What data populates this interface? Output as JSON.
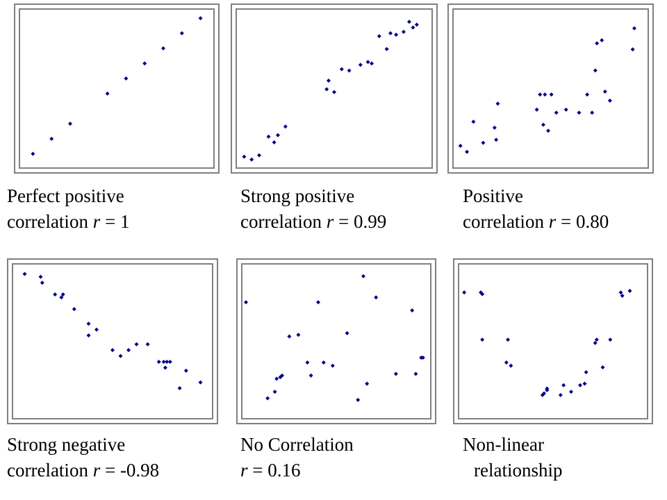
{
  "colors": {
    "point": "#00008b",
    "frame": "#808080",
    "background": "#ffffff",
    "text": "#000000"
  },
  "chart_data": [
    {
      "type": "scatter",
      "caption": {
        "line1": "Perfect positive",
        "line2_prefix": "correlation ",
        "r_symbol": "r",
        "line2_suffix": " = 1"
      },
      "points": [
        [
          0.5,
          3.0
        ],
        [
          1.5,
          4.5
        ],
        [
          2.5,
          6.0
        ],
        [
          4.5,
          9.0
        ],
        [
          5.5,
          10.5
        ],
        [
          6.5,
          12.0
        ],
        [
          7.5,
          13.5
        ],
        [
          8.5,
          15.0
        ],
        [
          9.5,
          16.5
        ]
      ]
    },
    {
      "type": "scatter",
      "caption": {
        "line1": "Strong positive",
        "line2_prefix": "correlation ",
        "r_symbol": "r",
        "line2_suffix": " = 0.99"
      },
      "points": [
        [
          0.2,
          2.5
        ],
        [
          0.6,
          2.3
        ],
        [
          1.0,
          2.6
        ],
        [
          1.5,
          3.9
        ],
        [
          1.8,
          3.5
        ],
        [
          2.0,
          4.0
        ],
        [
          2.4,
          4.6
        ],
        [
          4.6,
          7.2
        ],
        [
          4.7,
          7.8
        ],
        [
          5.0,
          7.0
        ],
        [
          5.4,
          8.6
        ],
        [
          5.8,
          8.5
        ],
        [
          6.4,
          8.9
        ],
        [
          6.8,
          9.1
        ],
        [
          7.0,
          9.0
        ],
        [
          7.4,
          10.9
        ],
        [
          7.8,
          10.0
        ],
        [
          8.0,
          11.1
        ],
        [
          8.3,
          11.0
        ],
        [
          8.7,
          11.2
        ],
        [
          9.0,
          11.9
        ],
        [
          9.2,
          11.5
        ],
        [
          9.4,
          11.7
        ]
      ]
    },
    {
      "type": "scatter",
      "caption": {
        "line1": "Positive",
        "line2_prefix": "correlation ",
        "r_symbol": "r",
        "line2_suffix": " = 0.80"
      },
      "points": [
        [
          0.2,
          3.6
        ],
        [
          0.6,
          3.4
        ],
        [
          1.0,
          4.4
        ],
        [
          1.6,
          3.7
        ],
        [
          2.3,
          4.2
        ],
        [
          2.4,
          3.8
        ],
        [
          2.5,
          5.0
        ],
        [
          4.9,
          4.8
        ],
        [
          5.1,
          5.3
        ],
        [
          5.3,
          4.3
        ],
        [
          5.4,
          5.3
        ],
        [
          5.6,
          4.1
        ],
        [
          5.8,
          5.3
        ],
        [
          6.1,
          4.7
        ],
        [
          6.7,
          4.8
        ],
        [
          7.5,
          4.7
        ],
        [
          8.0,
          5.3
        ],
        [
          8.3,
          4.7
        ],
        [
          8.5,
          6.1
        ],
        [
          8.6,
          7.0
        ],
        [
          8.9,
          7.1
        ],
        [
          9.1,
          5.4
        ],
        [
          9.4,
          5.1
        ],
        [
          10.8,
          6.8
        ],
        [
          10.9,
          7.5
        ]
      ]
    },
    {
      "type": "scatter",
      "caption": {
        "line1": "Strong negative",
        "line2_prefix": "correlation ",
        "r_symbol": "r",
        "line2_suffix": " = -0.98"
      },
      "points": [
        [
          0.5,
          9.8
        ],
        [
          1.5,
          9.7
        ],
        [
          1.6,
          9.5
        ],
        [
          2.4,
          9.1
        ],
        [
          2.8,
          9.0
        ],
        [
          2.9,
          9.1
        ],
        [
          3.6,
          8.6
        ],
        [
          4.5,
          8.1
        ],
        [
          4.5,
          7.7
        ],
        [
          5.0,
          7.9
        ],
        [
          6.0,
          7.2
        ],
        [
          6.5,
          7.0
        ],
        [
          7.0,
          7.2
        ],
        [
          7.5,
          7.4
        ],
        [
          8.2,
          7.4
        ],
        [
          8.9,
          6.8
        ],
        [
          9.2,
          6.8
        ],
        [
          9.3,
          6.6
        ],
        [
          9.4,
          6.8
        ],
        [
          9.6,
          6.8
        ],
        [
          10.2,
          5.9
        ],
        [
          10.6,
          6.5
        ],
        [
          11.5,
          6.1
        ]
      ]
    },
    {
      "type": "scatter",
      "caption": {
        "line1": "No Correlation",
        "line2_prefix": "",
        "r_symbol": "r",
        "line2_suffix": " = 0.16"
      },
      "points": [
        [
          0.0,
          7.9
        ],
        [
          1.2,
          2.0
        ],
        [
          1.6,
          2.4
        ],
        [
          1.7,
          3.2
        ],
        [
          1.9,
          3.3
        ],
        [
          2.0,
          3.4
        ],
        [
          2.4,
          5.8
        ],
        [
          2.9,
          5.9
        ],
        [
          3.4,
          4.2
        ],
        [
          3.6,
          3.4
        ],
        [
          4.0,
          7.9
        ],
        [
          4.3,
          4.2
        ],
        [
          4.8,
          4.0
        ],
        [
          5.6,
          6.0
        ],
        [
          6.2,
          1.9
        ],
        [
          6.5,
          9.5
        ],
        [
          6.7,
          2.9
        ],
        [
          7.2,
          8.2
        ],
        [
          8.3,
          3.5
        ],
        [
          9.2,
          7.4
        ],
        [
          9.4,
          3.5
        ],
        [
          9.7,
          4.5
        ],
        [
          9.8,
          4.5
        ]
      ]
    },
    {
      "type": "non-linear scatter",
      "caption": {
        "line1": "Non-linear",
        "line2_prefix": "",
        "r_symbol": "",
        "line2_suffix": "relationship"
      },
      "points": [
        [
          0.1,
          8.5
        ],
        [
          1.2,
          8.5
        ],
        [
          1.3,
          8.4
        ],
        [
          1.3,
          5.6
        ],
        [
          3.0,
          5.6
        ],
        [
          2.9,
          4.2
        ],
        [
          3.2,
          4.0
        ],
        [
          5.3,
          2.2
        ],
        [
          5.4,
          2.3
        ],
        [
          5.6,
          2.5
        ],
        [
          5.6,
          2.6
        ],
        [
          6.5,
          2.2
        ],
        [
          6.7,
          2.8
        ],
        [
          7.2,
          2.4
        ],
        [
          7.8,
          2.8
        ],
        [
          8.1,
          2.9
        ],
        [
          8.2,
          3.6
        ],
        [
          8.8,
          5.4
        ],
        [
          8.9,
          5.6
        ],
        [
          9.3,
          3.9
        ],
        [
          9.8,
          5.6
        ],
        [
          10.5,
          8.5
        ],
        [
          10.6,
          8.3
        ],
        [
          11.1,
          8.6
        ]
      ]
    }
  ]
}
